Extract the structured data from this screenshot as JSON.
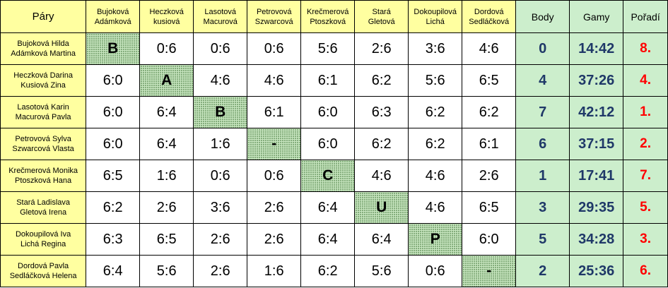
{
  "table": {
    "corner_label": "Páry",
    "columns": [
      "Bujoková\nAdámková",
      "Heczková\nkusiová",
      "Lasotová\nMacurová",
      "Petrovová\nSzwarcová",
      "Krečmerová\nPtoszková",
      "Stará\nGletová",
      "Dokoupilová\nLichá",
      "Dordová\nSedláčková"
    ],
    "summary_headers": {
      "points": "Body",
      "games": "Gamy",
      "rank": "Pořadí"
    },
    "rows": [
      {
        "pair": "Bujoková Hilda\nAdámková Martina",
        "cells": [
          "B",
          "0:6",
          "0:6",
          "0:6",
          "5:6",
          "2:6",
          "3:6",
          "4:6"
        ],
        "points": "0",
        "games": "14:42",
        "rank": "8."
      },
      {
        "pair": "Heczková Darina\nKusiová Zina",
        "cells": [
          "6:0",
          "A",
          "4:6",
          "4:6",
          "6:1",
          "6:2",
          "5:6",
          "6:5"
        ],
        "points": "4",
        "games": "37:26",
        "rank": "4."
      },
      {
        "pair": "Lasotová Karin\nMacurová Pavla",
        "cells": [
          "6:0",
          "6:4",
          "B",
          "6:1",
          "6:0",
          "6:3",
          "6:2",
          "6:2"
        ],
        "points": "7",
        "games": "42:12",
        "rank": "1."
      },
      {
        "pair": "Petrovová Sylva\nSzwarcová Vlasta",
        "cells": [
          "6:0",
          "6:4",
          "1:6",
          "-",
          "6:0",
          "6:2",
          "6:2",
          "6:1"
        ],
        "points": "6",
        "games": "37:15",
        "rank": "2."
      },
      {
        "pair": "Krečmerová Monika\nPtoszková Hana",
        "cells": [
          "6:5",
          "1:6",
          "0:6",
          "0:6",
          "C",
          "4:6",
          "4:6",
          "2:6"
        ],
        "points": "1",
        "games": "17:41",
        "rank": "7."
      },
      {
        "pair": "Stará Ladislava\nGletová Irena",
        "cells": [
          "6:2",
          "2:6",
          "3:6",
          "2:6",
          "6:4",
          "U",
          "4:6",
          "6:5"
        ],
        "points": "3",
        "games": "29:35",
        "rank": "5."
      },
      {
        "pair": "Dokoupilová Iva\nLichá Regina",
        "cells": [
          "6:3",
          "6:5",
          "2:6",
          "2:6",
          "6:4",
          "6:4",
          "P",
          "6:0"
        ],
        "points": "5",
        "games": "34:28",
        "rank": "3."
      },
      {
        "pair": "Dordová Pavla\nSedláčková Helena",
        "cells": [
          "6:4",
          "5:6",
          "2:6",
          "1:6",
          "6:2",
          "5:6",
          "0:6",
          "-"
        ],
        "points": "2",
        "games": "25:36",
        "rank": "6."
      }
    ]
  }
}
